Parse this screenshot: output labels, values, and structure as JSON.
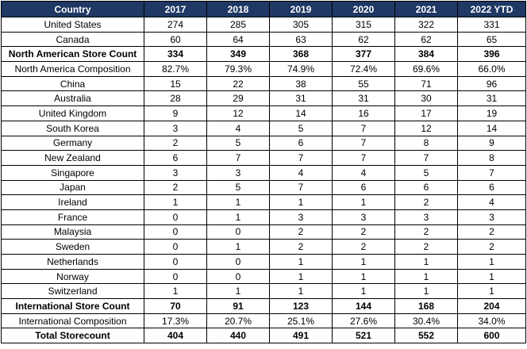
{
  "table": {
    "headers": [
      "Country",
      "2017",
      "2018",
      "2019",
      "2020",
      "2021",
      "2022 YTD"
    ],
    "rows": [
      {
        "label": "United States",
        "values": [
          "274",
          "285",
          "305",
          "315",
          "322",
          "331"
        ],
        "bold": false
      },
      {
        "label": "Canada",
        "values": [
          "60",
          "64",
          "63",
          "62",
          "62",
          "65"
        ],
        "bold": false
      },
      {
        "label": "North American Store Count",
        "values": [
          "334",
          "349",
          "368",
          "377",
          "384",
          "396"
        ],
        "bold": true
      },
      {
        "label": "North America Composition",
        "values": [
          "82.7%",
          "79.3%",
          "74.9%",
          "72.4%",
          "69.6%",
          "66.0%"
        ],
        "bold": false
      },
      {
        "label": "China",
        "values": [
          "15",
          "22",
          "38",
          "55",
          "71",
          "96"
        ],
        "bold": false
      },
      {
        "label": "Australia",
        "values": [
          "28",
          "29",
          "31",
          "31",
          "30",
          "31"
        ],
        "bold": false
      },
      {
        "label": "United Kingdom",
        "values": [
          "9",
          "12",
          "14",
          "16",
          "17",
          "19"
        ],
        "bold": false
      },
      {
        "label": "South Korea",
        "values": [
          "3",
          "4",
          "5",
          "7",
          "12",
          "14"
        ],
        "bold": false
      },
      {
        "label": "Germany",
        "values": [
          "2",
          "5",
          "6",
          "7",
          "8",
          "9"
        ],
        "bold": false
      },
      {
        "label": "New Zealand",
        "values": [
          "6",
          "7",
          "7",
          "7",
          "7",
          "8"
        ],
        "bold": false
      },
      {
        "label": "Singapore",
        "values": [
          "3",
          "3",
          "4",
          "4",
          "5",
          "7"
        ],
        "bold": false
      },
      {
        "label": "Japan",
        "values": [
          "2",
          "5",
          "7",
          "6",
          "6",
          "6"
        ],
        "bold": false
      },
      {
        "label": "Ireland",
        "values": [
          "1",
          "1",
          "1",
          "1",
          "2",
          "4"
        ],
        "bold": false
      },
      {
        "label": "France",
        "values": [
          "0",
          "1",
          "3",
          "3",
          "3",
          "3"
        ],
        "bold": false
      },
      {
        "label": "Malaysia",
        "values": [
          "0",
          "0",
          "2",
          "2",
          "2",
          "2"
        ],
        "bold": false
      },
      {
        "label": "Sweden",
        "values": [
          "0",
          "1",
          "2",
          "2",
          "2",
          "2"
        ],
        "bold": false
      },
      {
        "label": "Netherlands",
        "values": [
          "0",
          "0",
          "1",
          "1",
          "1",
          "1"
        ],
        "bold": false
      },
      {
        "label": "Norway",
        "values": [
          "0",
          "0",
          "1",
          "1",
          "1",
          "1"
        ],
        "bold": false
      },
      {
        "label": "Switzerland",
        "values": [
          "1",
          "1",
          "1",
          "1",
          "1",
          "1"
        ],
        "bold": false
      },
      {
        "label": "International Store Count",
        "values": [
          "70",
          "91",
          "123",
          "144",
          "168",
          "204"
        ],
        "bold": true
      },
      {
        "label": "International Composition",
        "values": [
          "17.3%",
          "20.7%",
          "25.1%",
          "27.6%",
          "30.4%",
          "34.0%"
        ],
        "bold": false
      },
      {
        "label": "Total Storecount",
        "values": [
          "404",
          "440",
          "491",
          "521",
          "552",
          "600"
        ],
        "bold": true
      }
    ]
  },
  "colors": {
    "header_background": "#1f3864",
    "header_text": "#ffffff",
    "border": "#000000"
  }
}
